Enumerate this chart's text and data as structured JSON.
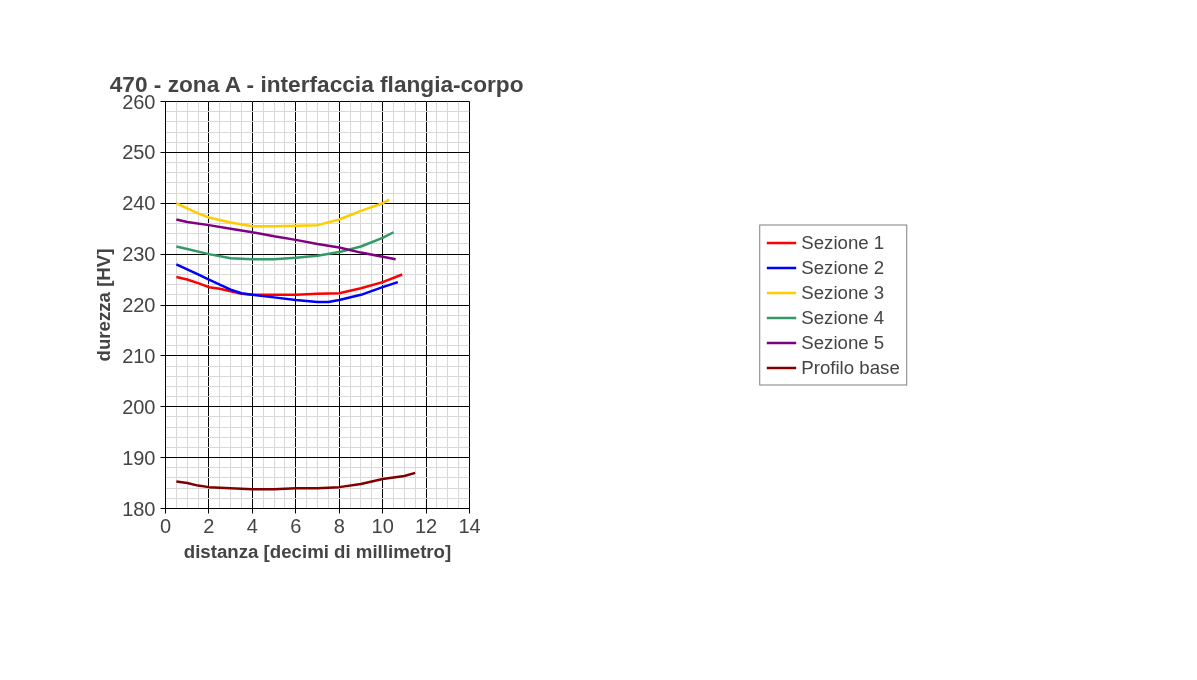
{
  "chart_data": {
    "type": "line",
    "title": "470 - zona A - interfaccia flangia-corpo",
    "xlabel": "distanza [decimi di millimetro]",
    "ylabel": "durezza [HV]",
    "xlim": [
      0,
      14
    ],
    "xticks": [
      0,
      2,
      4,
      6,
      8,
      10,
      12,
      14
    ],
    "ylim": [
      180,
      260
    ],
    "yticks": [
      180,
      190,
      200,
      210,
      220,
      230,
      240,
      250,
      260
    ],
    "grid": true,
    "legend": "right",
    "marker": "none",
    "line_style": "solid",
    "series": [
      {
        "name": "Sezione 1",
        "color": "#ff0000",
        "x": [
          0.5,
          1,
          1.5,
          2,
          2.5,
          3,
          3.5,
          4,
          5,
          6,
          7,
          8,
          9,
          10,
          10.9
        ],
        "values": [
          225.5,
          225,
          224.3,
          223.5,
          223.2,
          222.7,
          222.2,
          222,
          222,
          222,
          222.2,
          222.3,
          223.3,
          224.5,
          226
        ]
      },
      {
        "name": "Sezione 2",
        "color": "#0000ff",
        "x": [
          0.5,
          1,
          1.5,
          2,
          2.5,
          3,
          3.5,
          4,
          5,
          6,
          7,
          7.5,
          8,
          9,
          10,
          10.7
        ],
        "values": [
          228,
          227,
          226,
          225,
          224,
          223,
          222.3,
          222,
          221.5,
          221,
          220.6,
          220.6,
          221,
          222,
          223.5,
          224.5
        ]
      },
      {
        "name": "Sezione 3",
        "color": "#ffcc00",
        "x": [
          0.5,
          1,
          1.5,
          2,
          3,
          4,
          5,
          6,
          7,
          8,
          9,
          10,
          10.3
        ],
        "values": [
          240,
          239,
          238,
          237.2,
          236.2,
          235.5,
          235.5,
          235.6,
          235.7,
          236.8,
          238.5,
          240,
          240.7
        ]
      },
      {
        "name": "Sezione 4",
        "color": "#339966",
        "x": [
          0.5,
          1,
          2,
          3,
          4,
          5,
          6,
          7,
          8,
          9,
          10,
          10.5
        ],
        "values": [
          231.5,
          231,
          230,
          229.2,
          229,
          229,
          229.3,
          229.7,
          230.4,
          231.5,
          233.2,
          234.3
        ]
      },
      {
        "name": "Sezione 5",
        "color": "#800080",
        "x": [
          0.5,
          1,
          2,
          3,
          4,
          5,
          6,
          7,
          8,
          9,
          10,
          10.6
        ],
        "values": [
          236.8,
          236.3,
          235.7,
          235,
          234.3,
          233.5,
          232.8,
          232,
          231.3,
          230.3,
          229.5,
          229
        ]
      },
      {
        "name": "Profilo base",
        "color": "#800000",
        "x": [
          0.5,
          1,
          1.5,
          2,
          3,
          4,
          5,
          6,
          7,
          8,
          9,
          10,
          11,
          11.5
        ],
        "values": [
          185.3,
          185,
          184.5,
          184.2,
          184,
          183.8,
          183.8,
          184,
          184,
          184.2,
          184.8,
          185.8,
          186.4,
          187
        ]
      }
    ]
  }
}
